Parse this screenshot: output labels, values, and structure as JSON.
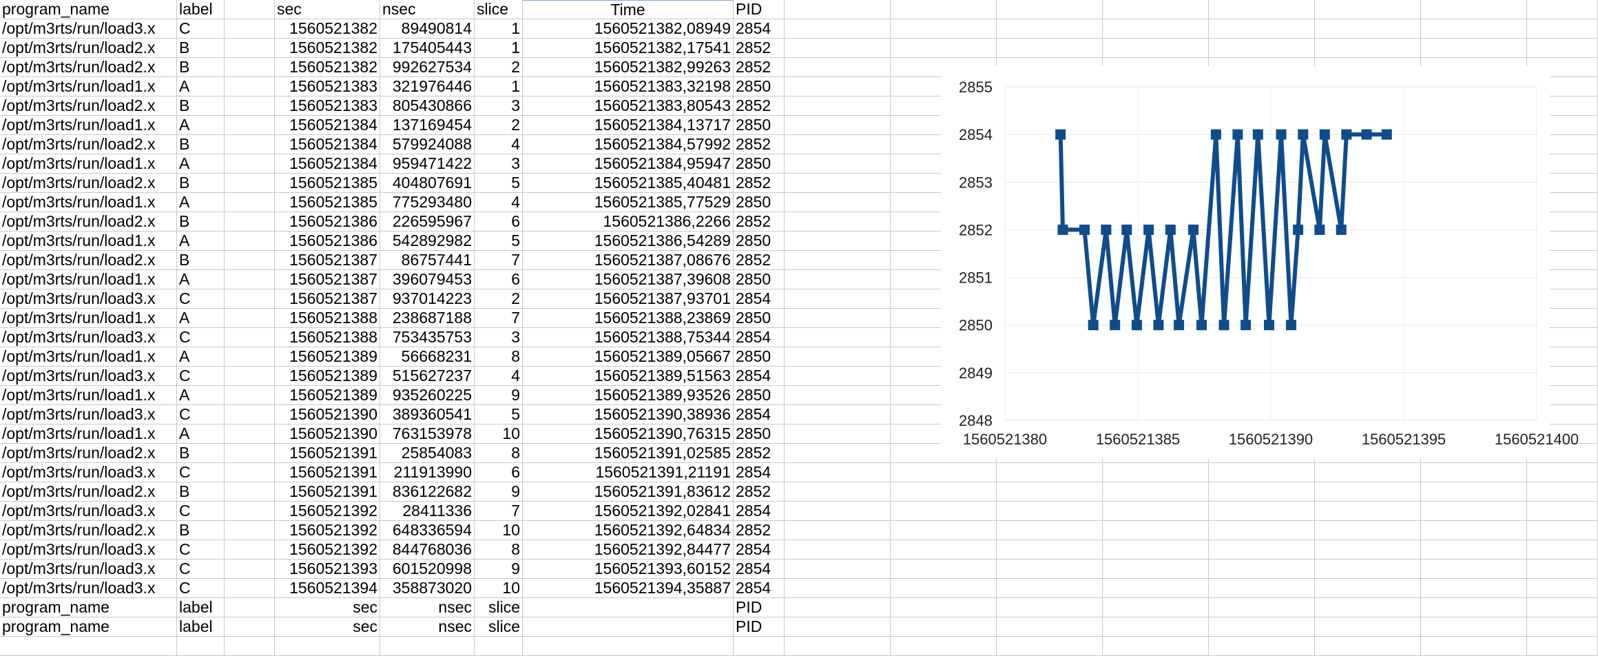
{
  "sheet": {
    "columns": [
      "program_name",
      "label",
      "",
      "sec",
      "nsec",
      "slice",
      "Time",
      "PID"
    ],
    "rows": [
      [
        "/opt/m3rts/run/load3.x",
        "C",
        "",
        "1560521382",
        "89490814",
        "1",
        "1560521382,08949",
        "2854"
      ],
      [
        "/opt/m3rts/run/load2.x",
        "B",
        "",
        "1560521382",
        "175405443",
        "1",
        "1560521382,17541",
        "2852"
      ],
      [
        "/opt/m3rts/run/load2.x",
        "B",
        "",
        "1560521382",
        "992627534",
        "2",
        "1560521382,99263",
        "2852"
      ],
      [
        "/opt/m3rts/run/load1.x",
        "A",
        "",
        "1560521383",
        "321976446",
        "1",
        "1560521383,32198",
        "2850"
      ],
      [
        "/opt/m3rts/run/load2.x",
        "B",
        "",
        "1560521383",
        "805430866",
        "3",
        "1560521383,80543",
        "2852"
      ],
      [
        "/opt/m3rts/run/load1.x",
        "A",
        "",
        "1560521384",
        "137169454",
        "2",
        "1560521384,13717",
        "2850"
      ],
      [
        "/opt/m3rts/run/load2.x",
        "B",
        "",
        "1560521384",
        "579924088",
        "4",
        "1560521384,57992",
        "2852"
      ],
      [
        "/opt/m3rts/run/load1.x",
        "A",
        "",
        "1560521384",
        "959471422",
        "3",
        "1560521384,95947",
        "2850"
      ],
      [
        "/opt/m3rts/run/load2.x",
        "B",
        "",
        "1560521385",
        "404807691",
        "5",
        "1560521385,40481",
        "2852"
      ],
      [
        "/opt/m3rts/run/load1.x",
        "A",
        "",
        "1560521385",
        "775293480",
        "4",
        "1560521385,77529",
        "2850"
      ],
      [
        "/opt/m3rts/run/load2.x",
        "B",
        "",
        "1560521386",
        "226595967",
        "6",
        "1560521386,2266",
        "2852"
      ],
      [
        "/opt/m3rts/run/load1.x",
        "A",
        "",
        "1560521386",
        "542892982",
        "5",
        "1560521386,54289",
        "2850"
      ],
      [
        "/opt/m3rts/run/load2.x",
        "B",
        "",
        "1560521387",
        "86757441",
        "7",
        "1560521387,08676",
        "2852"
      ],
      [
        "/opt/m3rts/run/load1.x",
        "A",
        "",
        "1560521387",
        "396079453",
        "6",
        "1560521387,39608",
        "2850"
      ],
      [
        "/opt/m3rts/run/load3.x",
        "C",
        "",
        "1560521387",
        "937014223",
        "2",
        "1560521387,93701",
        "2854"
      ],
      [
        "/opt/m3rts/run/load1.x",
        "A",
        "",
        "1560521388",
        "238687188",
        "7",
        "1560521388,23869",
        "2850"
      ],
      [
        "/opt/m3rts/run/load3.x",
        "C",
        "",
        "1560521388",
        "753435753",
        "3",
        "1560521388,75344",
        "2854"
      ],
      [
        "/opt/m3rts/run/load1.x",
        "A",
        "",
        "1560521389",
        "56668231",
        "8",
        "1560521389,05667",
        "2850"
      ],
      [
        "/opt/m3rts/run/load3.x",
        "C",
        "",
        "1560521389",
        "515627237",
        "4",
        "1560521389,51563",
        "2854"
      ],
      [
        "/opt/m3rts/run/load1.x",
        "A",
        "",
        "1560521389",
        "935260225",
        "9",
        "1560521389,93526",
        "2850"
      ],
      [
        "/opt/m3rts/run/load3.x",
        "C",
        "",
        "1560521390",
        "389360541",
        "5",
        "1560521390,38936",
        "2854"
      ],
      [
        "/opt/m3rts/run/load1.x",
        "A",
        "",
        "1560521390",
        "763153978",
        "10",
        "1560521390,76315",
        "2850"
      ],
      [
        "/opt/m3rts/run/load2.x",
        "B",
        "",
        "1560521391",
        "25854083",
        "8",
        "1560521391,02585",
        "2852"
      ],
      [
        "/opt/m3rts/run/load3.x",
        "C",
        "",
        "1560521391",
        "211913990",
        "6",
        "1560521391,21191",
        "2854"
      ],
      [
        "/opt/m3rts/run/load2.x",
        "B",
        "",
        "1560521391",
        "836122682",
        "9",
        "1560521391,83612",
        "2852"
      ],
      [
        "/opt/m3rts/run/load3.x",
        "C",
        "",
        "1560521392",
        "28411336",
        "7",
        "1560521392,02841",
        "2854"
      ],
      [
        "/opt/m3rts/run/load2.x",
        "B",
        "",
        "1560521392",
        "648336594",
        "10",
        "1560521392,64834",
        "2852"
      ],
      [
        "/opt/m3rts/run/load3.x",
        "C",
        "",
        "1560521392",
        "844768036",
        "8",
        "1560521392,84477",
        "2854"
      ],
      [
        "/opt/m3rts/run/load3.x",
        "C",
        "",
        "1560521393",
        "601520998",
        "9",
        "1560521393,60152",
        "2854"
      ],
      [
        "/opt/m3rts/run/load3.x",
        "C",
        "",
        "1560521394",
        "358873020",
        "10",
        "1560521394,35887",
        "2854"
      ],
      [
        "program_name",
        "label",
        "",
        "sec",
        "nsec",
        "slice",
        "",
        "PID"
      ],
      [
        "program_name",
        "label",
        "",
        "sec",
        "nsec",
        "slice",
        "",
        "PID"
      ]
    ]
  },
  "chart_data": {
    "type": "line",
    "series_color": "#0f4c8c",
    "marker": "square",
    "grid": true,
    "xlim": [
      1560521380,
      1560521400
    ],
    "ylim": [
      2848,
      2855
    ],
    "x_ticks": [
      "1560521380",
      "1560521385",
      "1560521390",
      "1560521395",
      "1560521400"
    ],
    "y_ticks": [
      "2855",
      "2854",
      "2853",
      "2852",
      "2851",
      "2850",
      "2849",
      "2848"
    ],
    "series": [
      {
        "x": [
          1560521382.08949,
          1560521382.17541,
          1560521382.99263,
          1560521383.32198,
          1560521383.80543,
          1560521384.13717,
          1560521384.57992,
          1560521384.95947,
          1560521385.40481,
          1560521385.77529,
          1560521386.2266,
          1560521386.54289,
          1560521387.08676,
          1560521387.39608,
          1560521387.93701,
          1560521388.23869,
          1560521388.75344,
          1560521389.05667,
          1560521389.51563,
          1560521389.93526,
          1560521390.38936,
          1560521390.76315,
          1560521391.02585,
          1560521391.21191,
          1560521391.83612,
          1560521392.02841,
          1560521392.64834,
          1560521392.84477,
          1560521393.60152,
          1560521394.35887
        ],
        "y": [
          2854,
          2852,
          2852,
          2850,
          2852,
          2850,
          2852,
          2850,
          2852,
          2850,
          2852,
          2850,
          2852,
          2850,
          2854,
          2850,
          2854,
          2850,
          2854,
          2850,
          2854,
          2850,
          2852,
          2854,
          2852,
          2854,
          2852,
          2854,
          2854,
          2854
        ]
      }
    ]
  }
}
